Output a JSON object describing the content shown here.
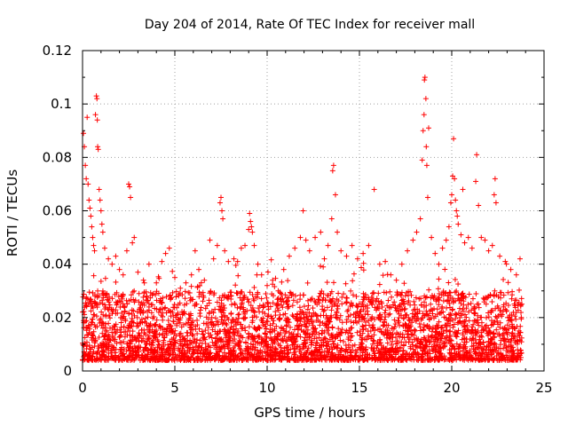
{
  "chart_data": {
    "type": "scatter",
    "title": "Day 204 of 2014, Rate Of TEC Index for receiver mall",
    "xlabel": "GPS time / hours",
    "ylabel": "ROTI / TECUs",
    "xlim": [
      0,
      25
    ],
    "ylim": [
      0,
      0.12
    ],
    "xticks": [
      0,
      5,
      10,
      15,
      20,
      25
    ],
    "xtick_labels": [
      "0",
      "5",
      "10",
      "15",
      "20",
      "25"
    ],
    "yticks": [
      0,
      0.02,
      0.04,
      0.06,
      0.08,
      0.1,
      0.12
    ],
    "ytick_labels": [
      "0",
      "0.02",
      "0.04",
      "0.06",
      "0.08",
      "0.1",
      "0.12"
    ],
    "grid": true,
    "marker": "+",
    "color": "#ff0000",
    "series": [
      {
        "name": "ROTI",
        "points": [
          [
            0.05,
            0.089
          ],
          [
            0.1,
            0.084
          ],
          [
            0.15,
            0.077
          ],
          [
            0.2,
            0.072
          ],
          [
            0.25,
            0.095
          ],
          [
            0.3,
            0.07
          ],
          [
            0.35,
            0.064
          ],
          [
            0.4,
            0.061
          ],
          [
            0.45,
            0.058
          ],
          [
            0.5,
            0.054
          ],
          [
            0.55,
            0.05
          ],
          [
            0.6,
            0.047
          ],
          [
            0.65,
            0.045
          ],
          [
            0.7,
            0.096
          ],
          [
            0.75,
            0.103
          ],
          [
            0.78,
            0.102
          ],
          [
            0.8,
            0.094
          ],
          [
            0.82,
            0.084
          ],
          [
            0.85,
            0.083
          ],
          [
            0.9,
            0.068
          ],
          [
            0.95,
            0.064
          ],
          [
            1.0,
            0.06
          ],
          [
            1.05,
            0.055
          ],
          [
            1.1,
            0.052
          ],
          [
            1.2,
            0.046
          ],
          [
            1.4,
            0.042
          ],
          [
            1.6,
            0.04
          ],
          [
            1.8,
            0.043
          ],
          [
            2.0,
            0.038
          ],
          [
            2.2,
            0.036
          ],
          [
            2.4,
            0.045
          ],
          [
            2.5,
            0.07
          ],
          [
            2.55,
            0.069
          ],
          [
            2.6,
            0.065
          ],
          [
            2.7,
            0.048
          ],
          [
            2.8,
            0.05
          ],
          [
            3.0,
            0.037
          ],
          [
            3.3,
            0.034
          ],
          [
            3.6,
            0.04
          ],
          [
            4.0,
            0.033
          ],
          [
            4.3,
            0.041
          ],
          [
            4.5,
            0.044
          ],
          [
            4.7,
            0.046
          ],
          [
            5.0,
            0.035
          ],
          [
            5.3,
            0.031
          ],
          [
            5.6,
            0.033
          ],
          [
            5.9,
            0.036
          ],
          [
            6.1,
            0.045
          ],
          [
            6.3,
            0.038
          ],
          [
            6.6,
            0.034
          ],
          [
            6.9,
            0.049
          ],
          [
            7.1,
            0.042
          ],
          [
            7.3,
            0.047
          ],
          [
            7.45,
            0.063
          ],
          [
            7.5,
            0.065
          ],
          [
            7.55,
            0.06
          ],
          [
            7.6,
            0.057
          ],
          [
            7.7,
            0.045
          ],
          [
            7.9,
            0.041
          ],
          [
            8.2,
            0.042
          ],
          [
            8.4,
            0.041
          ],
          [
            8.6,
            0.046
          ],
          [
            8.8,
            0.047
          ],
          [
            9.0,
            0.053
          ],
          [
            9.05,
            0.059
          ],
          [
            9.1,
            0.056
          ],
          [
            9.15,
            0.054
          ],
          [
            9.2,
            0.052
          ],
          [
            9.3,
            0.047
          ],
          [
            9.5,
            0.04
          ],
          [
            9.7,
            0.036
          ],
          [
            10.0,
            0.032
          ],
          [
            10.3,
            0.034
          ],
          [
            10.6,
            0.03
          ],
          [
            10.9,
            0.038
          ],
          [
            11.2,
            0.043
          ],
          [
            11.5,
            0.046
          ],
          [
            11.8,
            0.05
          ],
          [
            11.95,
            0.06
          ],
          [
            12.1,
            0.049
          ],
          [
            12.3,
            0.045
          ],
          [
            12.6,
            0.05
          ],
          [
            12.9,
            0.052
          ],
          [
            13.1,
            0.042
          ],
          [
            13.3,
            0.047
          ],
          [
            13.5,
            0.057
          ],
          [
            13.55,
            0.075
          ],
          [
            13.6,
            0.077
          ],
          [
            13.7,
            0.066
          ],
          [
            13.8,
            0.052
          ],
          [
            14.0,
            0.045
          ],
          [
            14.3,
            0.043
          ],
          [
            14.6,
            0.047
          ],
          [
            14.9,
            0.042
          ],
          [
            15.2,
            0.044
          ],
          [
            15.5,
            0.047
          ],
          [
            15.8,
            0.068
          ],
          [
            16.1,
            0.04
          ],
          [
            16.4,
            0.041
          ],
          [
            16.7,
            0.036
          ],
          [
            17.0,
            0.034
          ],
          [
            17.3,
            0.04
          ],
          [
            17.6,
            0.045
          ],
          [
            17.9,
            0.049
          ],
          [
            18.1,
            0.052
          ],
          [
            18.3,
            0.057
          ],
          [
            18.4,
            0.079
          ],
          [
            18.45,
            0.09
          ],
          [
            18.5,
            0.096
          ],
          [
            18.52,
            0.109
          ],
          [
            18.55,
            0.11
          ],
          [
            18.6,
            0.102
          ],
          [
            18.62,
            0.084
          ],
          [
            18.65,
            0.077
          ],
          [
            18.7,
            0.065
          ],
          [
            18.75,
            0.091
          ],
          [
            18.9,
            0.05
          ],
          [
            19.1,
            0.044
          ],
          [
            19.3,
            0.04
          ],
          [
            19.5,
            0.046
          ],
          [
            19.7,
            0.049
          ],
          [
            19.85,
            0.054
          ],
          [
            19.95,
            0.063
          ],
          [
            20.0,
            0.066
          ],
          [
            20.05,
            0.073
          ],
          [
            20.1,
            0.087
          ],
          [
            20.15,
            0.072
          ],
          [
            20.2,
            0.064
          ],
          [
            20.25,
            0.06
          ],
          [
            20.3,
            0.058
          ],
          [
            20.35,
            0.055
          ],
          [
            20.5,
            0.051
          ],
          [
            20.6,
            0.068
          ],
          [
            20.7,
            0.048
          ],
          [
            20.9,
            0.05
          ],
          [
            21.1,
            0.046
          ],
          [
            21.3,
            0.071
          ],
          [
            21.35,
            0.081
          ],
          [
            21.45,
            0.062
          ],
          [
            21.6,
            0.05
          ],
          [
            21.8,
            0.049
          ],
          [
            22.0,
            0.045
          ],
          [
            22.2,
            0.047
          ],
          [
            22.3,
            0.066
          ],
          [
            22.35,
            0.072
          ],
          [
            22.4,
            0.063
          ],
          [
            22.6,
            0.043
          ],
          [
            22.9,
            0.041
          ],
          [
            23.2,
            0.038
          ],
          [
            23.5,
            0.036
          ],
          [
            23.7,
            0.042
          ]
        ]
      }
    ]
  }
}
